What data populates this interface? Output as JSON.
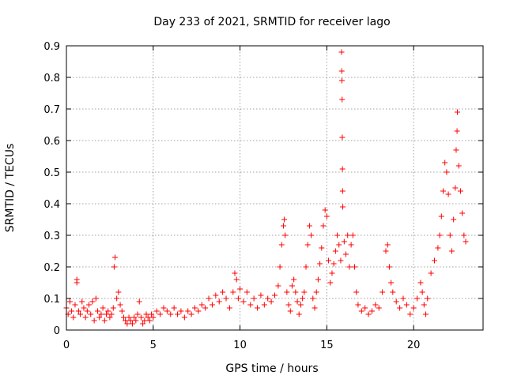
{
  "chart_data": {
    "type": "scatter",
    "title": "Day 233 of 2021, SRMTID for receiver lago",
    "xlabel": "GPS time / hours",
    "ylabel": "SRMTID / TECUs",
    "xlim": [
      0,
      24
    ],
    "ylim": [
      0,
      0.9
    ],
    "xticks": [
      0,
      5,
      10,
      15,
      20
    ],
    "xtick_labels": [
      "0",
      "5",
      "10",
      "15",
      "20"
    ],
    "yticks": [
      0,
      0.1,
      0.2,
      0.3,
      0.4,
      0.5,
      0.6,
      0.7,
      0.8,
      0.9
    ],
    "ytick_labels": [
      "0",
      "0.1",
      "0.2",
      "0.3",
      "0.4",
      "0.5",
      "0.6",
      "0.7",
      "0.8",
      "0.9"
    ],
    "grid": true,
    "marker": "+",
    "color": "#ff0000",
    "series": [
      {
        "name": "SRMTID",
        "points": [
          [
            0.0,
            0.07
          ],
          [
            0.1,
            0.05
          ],
          [
            0.2,
            0.09
          ],
          [
            0.3,
            0.06
          ],
          [
            0.4,
            0.04
          ],
          [
            0.5,
            0.08
          ],
          [
            0.6,
            0.15
          ],
          [
            0.6,
            0.16
          ],
          [
            0.7,
            0.06
          ],
          [
            0.8,
            0.05
          ],
          [
            0.9,
            0.09
          ],
          [
            1.0,
            0.07
          ],
          [
            1.1,
            0.04
          ],
          [
            1.2,
            0.06
          ],
          [
            1.3,
            0.08
          ],
          [
            1.4,
            0.05
          ],
          [
            1.5,
            0.09
          ],
          [
            1.6,
            0.03
          ],
          [
            1.7,
            0.1
          ],
          [
            1.8,
            0.06
          ],
          [
            1.9,
            0.04
          ],
          [
            2.0,
            0.05
          ],
          [
            2.1,
            0.07
          ],
          [
            2.2,
            0.03
          ],
          [
            2.3,
            0.05
          ],
          [
            2.4,
            0.06
          ],
          [
            2.5,
            0.04
          ],
          [
            2.6,
            0.05
          ],
          [
            2.7,
            0.07
          ],
          [
            2.75,
            0.2
          ],
          [
            2.8,
            0.23
          ],
          [
            2.9,
            0.1
          ],
          [
            3.0,
            0.12
          ],
          [
            3.1,
            0.08
          ],
          [
            3.2,
            0.06
          ],
          [
            3.3,
            0.04
          ],
          [
            3.4,
            0.03
          ],
          [
            3.5,
            0.02
          ],
          [
            3.6,
            0.04
          ],
          [
            3.7,
            0.03
          ],
          [
            3.8,
            0.02
          ],
          [
            3.9,
            0.04
          ],
          [
            4.0,
            0.03
          ],
          [
            4.1,
            0.05
          ],
          [
            4.2,
            0.09
          ],
          [
            4.3,
            0.04
          ],
          [
            4.4,
            0.02
          ],
          [
            4.5,
            0.03
          ],
          [
            4.6,
            0.05
          ],
          [
            4.7,
            0.04
          ],
          [
            4.8,
            0.03
          ],
          [
            4.9,
            0.05
          ],
          [
            5.0,
            0.04
          ],
          [
            5.2,
            0.06
          ],
          [
            5.4,
            0.05
          ],
          [
            5.6,
            0.07
          ],
          [
            5.8,
            0.06
          ],
          [
            6.0,
            0.05
          ],
          [
            6.2,
            0.07
          ],
          [
            6.4,
            0.05
          ],
          [
            6.6,
            0.06
          ],
          [
            6.8,
            0.04
          ],
          [
            7.0,
            0.06
          ],
          [
            7.2,
            0.05
          ],
          [
            7.4,
            0.07
          ],
          [
            7.6,
            0.06
          ],
          [
            7.8,
            0.08
          ],
          [
            8.0,
            0.07
          ],
          [
            8.2,
            0.1
          ],
          [
            8.4,
            0.08
          ],
          [
            8.6,
            0.11
          ],
          [
            8.8,
            0.09
          ],
          [
            9.0,
            0.12
          ],
          [
            9.2,
            0.1
          ],
          [
            9.4,
            0.07
          ],
          [
            9.6,
            0.12
          ],
          [
            9.7,
            0.18
          ],
          [
            9.8,
            0.16
          ],
          [
            9.9,
            0.1
          ],
          [
            10.0,
            0.13
          ],
          [
            10.2,
            0.09
          ],
          [
            10.4,
            0.12
          ],
          [
            10.6,
            0.08
          ],
          [
            10.8,
            0.1
          ],
          [
            11.0,
            0.07
          ],
          [
            11.2,
            0.11
          ],
          [
            11.4,
            0.08
          ],
          [
            11.6,
            0.1
          ],
          [
            11.8,
            0.09
          ],
          [
            12.0,
            0.11
          ],
          [
            12.2,
            0.14
          ],
          [
            12.3,
            0.2
          ],
          [
            12.4,
            0.27
          ],
          [
            12.5,
            0.33
          ],
          [
            12.55,
            0.35
          ],
          [
            12.6,
            0.3
          ],
          [
            12.7,
            0.12
          ],
          [
            12.8,
            0.08
          ],
          [
            12.9,
            0.06
          ],
          [
            13.0,
            0.14
          ],
          [
            13.1,
            0.16
          ],
          [
            13.2,
            0.12
          ],
          [
            13.3,
            0.09
          ],
          [
            13.4,
            0.05
          ],
          [
            13.5,
            0.08
          ],
          [
            13.6,
            0.1
          ],
          [
            13.7,
            0.12
          ],
          [
            13.8,
            0.2
          ],
          [
            13.9,
            0.27
          ],
          [
            14.0,
            0.33
          ],
          [
            14.1,
            0.3
          ],
          [
            14.2,
            0.1
          ],
          [
            14.3,
            0.07
          ],
          [
            14.4,
            0.12
          ],
          [
            14.5,
            0.16
          ],
          [
            14.6,
            0.21
          ],
          [
            14.7,
            0.26
          ],
          [
            14.8,
            0.33
          ],
          [
            14.9,
            0.38
          ],
          [
            15.0,
            0.36
          ],
          [
            15.1,
            0.22
          ],
          [
            15.2,
            0.15
          ],
          [
            15.3,
            0.18
          ],
          [
            15.4,
            0.21
          ],
          [
            15.5,
            0.25
          ],
          [
            15.6,
            0.3
          ],
          [
            15.7,
            0.27
          ],
          [
            15.8,
            0.22
          ],
          [
            15.85,
            0.88
          ],
          [
            15.86,
            0.82
          ],
          [
            15.87,
            0.79
          ],
          [
            15.88,
            0.73
          ],
          [
            15.89,
            0.61
          ],
          [
            15.9,
            0.51
          ],
          [
            15.91,
            0.44
          ],
          [
            15.92,
            0.39
          ],
          [
            16.0,
            0.28
          ],
          [
            16.1,
            0.24
          ],
          [
            16.2,
            0.3
          ],
          [
            16.3,
            0.2
          ],
          [
            16.4,
            0.27
          ],
          [
            16.5,
            0.3
          ],
          [
            16.6,
            0.2
          ],
          [
            16.7,
            0.12
          ],
          [
            16.8,
            0.08
          ],
          [
            17.0,
            0.06
          ],
          [
            17.2,
            0.07
          ],
          [
            17.4,
            0.05
          ],
          [
            17.6,
            0.06
          ],
          [
            17.8,
            0.08
          ],
          [
            18.0,
            0.07
          ],
          [
            18.2,
            0.12
          ],
          [
            18.4,
            0.25
          ],
          [
            18.5,
            0.27
          ],
          [
            18.6,
            0.2
          ],
          [
            18.7,
            0.15
          ],
          [
            18.8,
            0.12
          ],
          [
            19.0,
            0.09
          ],
          [
            19.2,
            0.07
          ],
          [
            19.4,
            0.1
          ],
          [
            19.6,
            0.08
          ],
          [
            19.8,
            0.05
          ],
          [
            20.0,
            0.07
          ],
          [
            20.2,
            0.1
          ],
          [
            20.4,
            0.15
          ],
          [
            20.5,
            0.12
          ],
          [
            20.6,
            0.08
          ],
          [
            20.7,
            0.05
          ],
          [
            20.8,
            0.1
          ],
          [
            21.0,
            0.18
          ],
          [
            21.2,
            0.22
          ],
          [
            21.4,
            0.26
          ],
          [
            21.5,
            0.3
          ],
          [
            21.6,
            0.36
          ],
          [
            21.7,
            0.44
          ],
          [
            21.8,
            0.53
          ],
          [
            21.9,
            0.5
          ],
          [
            22.0,
            0.43
          ],
          [
            22.1,
            0.3
          ],
          [
            22.2,
            0.25
          ],
          [
            22.3,
            0.35
          ],
          [
            22.4,
            0.45
          ],
          [
            22.45,
            0.57
          ],
          [
            22.5,
            0.63
          ],
          [
            22.52,
            0.69
          ],
          [
            22.6,
            0.52
          ],
          [
            22.7,
            0.44
          ],
          [
            22.8,
            0.37
          ],
          [
            22.9,
            0.3
          ],
          [
            23.0,
            0.28
          ]
        ]
      }
    ]
  }
}
